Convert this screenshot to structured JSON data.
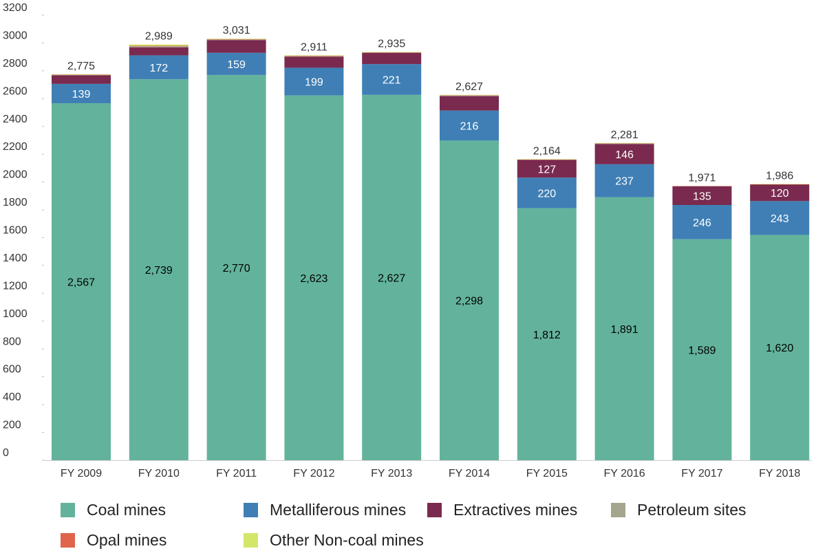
{
  "chart_data": {
    "type": "bar",
    "stacked": true,
    "title": "",
    "xlabel": "",
    "ylabel": "",
    "ylim": [
      0,
      3200
    ],
    "yticks": [
      0,
      200,
      400,
      600,
      800,
      1000,
      1200,
      1400,
      1600,
      1800,
      2000,
      2200,
      2400,
      2600,
      2800,
      3000,
      3200
    ],
    "grid": false,
    "legend_position": "bottom",
    "categories": [
      "FY 2009",
      "FY 2010",
      "FY 2011",
      "FY 2012",
      "FY 2013",
      "FY 2014",
      "FY 2015",
      "FY 2016",
      "FY 2017",
      "FY 2018"
    ],
    "totals": [
      "2,775",
      "2,989",
      "3,031",
      "2,911",
      "2,935",
      "2,627",
      "2,164",
      "2,281",
      "1,971",
      "1,986"
    ],
    "series": [
      {
        "name": "Coal mines",
        "color": "#63b39c",
        "label_color": "#000000",
        "values": [
          2567,
          2739,
          2770,
          2623,
          2627,
          2298,
          1812,
          1891,
          1589,
          1620
        ],
        "labels": [
          "2,567",
          "2,739",
          "2,770",
          "2,623",
          "2,627",
          "2,298",
          "1,812",
          "1,891",
          "1,589",
          "1,620"
        ]
      },
      {
        "name": "Metalliferous mines",
        "color": "#3f7fb5",
        "label_color": "#ffffff",
        "values": [
          139,
          172,
          159,
          199,
          221,
          216,
          220,
          237,
          246,
          243
        ],
        "labels": [
          "139",
          "172",
          "159",
          "199",
          "221",
          "216",
          "220",
          "237",
          "246",
          "243"
        ]
      },
      {
        "name": "Extractives mines",
        "color": "#7a2a4e",
        "label_color": "#ffffff",
        "values": [
          62,
          58,
          92,
          79,
          81,
          104,
          127,
          146,
          135,
          120
        ],
        "labels": [
          "",
          "",
          "",
          "",
          "",
          "",
          "127",
          "146",
          "135",
          "120"
        ]
      },
      {
        "name": "Petroleum sites",
        "color": "#a6a68e",
        "label_color": "#ffffff",
        "values": [
          3,
          8,
          4,
          4,
          3,
          5,
          2,
          3,
          0,
          0
        ],
        "labels": [
          "",
          "",
          "",
          "",
          "",
          "",
          "",
          "",
          "",
          ""
        ]
      },
      {
        "name": "Opal mines",
        "color": "#e0644a",
        "label_color": "#ffffff",
        "values": [
          2,
          3,
          3,
          3,
          1,
          2,
          1,
          2,
          1,
          1
        ],
        "labels": [
          "",
          "",
          "",
          "",
          "",
          "",
          "",
          "",
          "",
          ""
        ]
      },
      {
        "name": "Other Non-coal mines",
        "color": "#d4e66a",
        "label_color": "#ffffff",
        "values": [
          2,
          9,
          3,
          3,
          2,
          2,
          2,
          2,
          0,
          2
        ],
        "labels": [
          "",
          "",
          "",
          "",
          "",
          "",
          "",
          "",
          "",
          ""
        ]
      }
    ]
  }
}
